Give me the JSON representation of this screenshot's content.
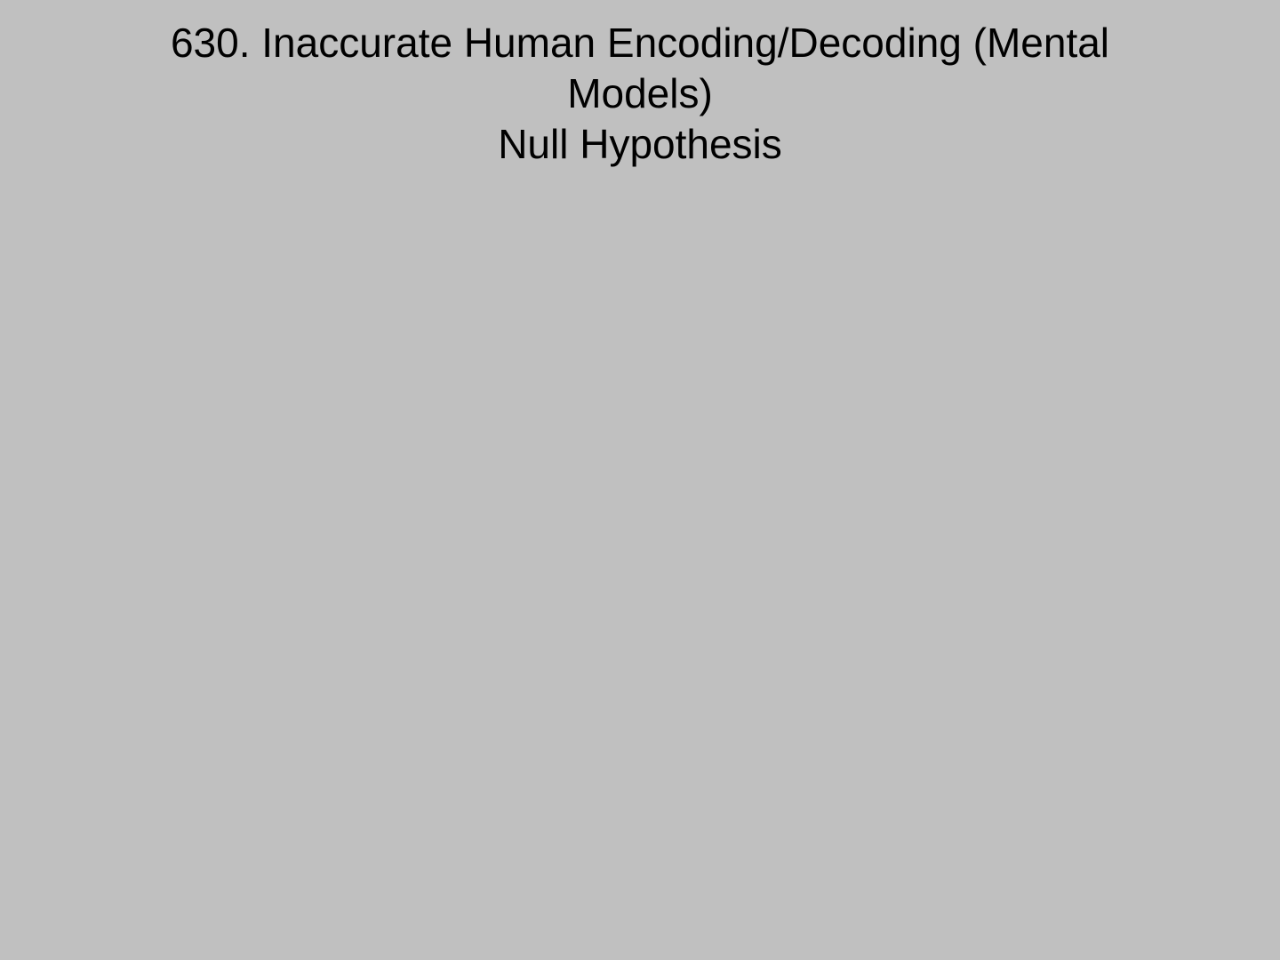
{
  "slide": {
    "background": "#c0c0c0",
    "title_lines": [
      "630. Inaccurate Human Encoding/Decoding (Mental",
      "Models)",
      "Null Hypothesis"
    ]
  }
}
